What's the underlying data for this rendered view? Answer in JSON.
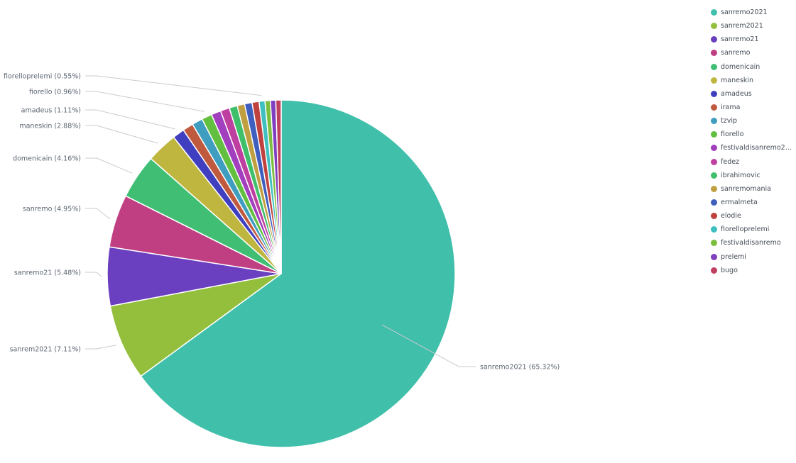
{
  "chart_data": {
    "type": "pie",
    "slices": [
      {
        "label": "sanremo2021",
        "value": 65.32,
        "color": "#40bfaa"
      },
      {
        "label": "sanrem2021",
        "value": 7.11,
        "color": "#93bf3c"
      },
      {
        "label": "sanremo21",
        "value": 5.48,
        "color": "#6a3fc0"
      },
      {
        "label": "sanremo",
        "value": 4.95,
        "color": "#c03f83"
      },
      {
        "label": "domenicain",
        "value": 4.16,
        "color": "#40bf74"
      },
      {
        "label": "maneskin",
        "value": 2.88,
        "color": "#bfb63f"
      },
      {
        "label": "amadeus",
        "value": 1.11,
        "color": "#403fbf"
      },
      {
        "label": "irama",
        "value": 1.0,
        "color": "#c05a3f"
      },
      {
        "label": "tzvip",
        "value": 1.0,
        "color": "#3f9dbf"
      },
      {
        "label": "fiorello",
        "value": 0.96,
        "color": "#62bf3f"
      },
      {
        "label": "festivaldisanremo2...",
        "value": 0.9,
        "color": "#a13fbf"
      },
      {
        "label": "fedez",
        "value": 0.85,
        "color": "#bf3fa1"
      },
      {
        "label": "ibrahimovic",
        "value": 0.75,
        "color": "#3fbf6a"
      },
      {
        "label": "sanremomania",
        "value": 0.7,
        "color": "#bf9f3f"
      },
      {
        "label": "ermalmeta",
        "value": 0.7,
        "color": "#3f5fbf"
      },
      {
        "label": "elodie",
        "value": 0.65,
        "color": "#bf423f"
      },
      {
        "label": "fiorelloprelemi",
        "value": 0.55,
        "color": "#3fbfbf"
      },
      {
        "label": "festivaldisanremo",
        "value": 0.5,
        "color": "#7cbf3f"
      },
      {
        "label": "prelemi",
        "value": 0.5,
        "color": "#803fbf"
      },
      {
        "label": "bugo",
        "value": 0.5,
        "color": "#bf3f5f"
      }
    ],
    "callouts": [
      {
        "label": "sanremo2021",
        "text": "sanremo2021 (65.32%)"
      },
      {
        "label": "sanrem2021",
        "text": "sanrem2021 (7.11%)"
      },
      {
        "label": "sanremo21",
        "text": "sanremo21 (5.48%)"
      },
      {
        "label": "sanremo",
        "text": "sanremo (4.95%)"
      },
      {
        "label": "domenicain",
        "text": "domenicain (4.16%)"
      },
      {
        "label": "maneskin",
        "text": "maneskin (2.88%)"
      },
      {
        "label": "amadeus",
        "text": "amadeus (1.11%)"
      },
      {
        "label": "fiorello",
        "text": "fiorello (0.96%)"
      },
      {
        "label": "fiorelloprelemi",
        "text": "fiorelloprelemi (0.55%)"
      }
    ],
    "legend_position": "top-right"
  },
  "legend": [
    {
      "label": "sanremo2021",
      "color": "#40bfaa"
    },
    {
      "label": "sanrem2021",
      "color": "#93bf3c"
    },
    {
      "label": "sanremo21",
      "color": "#6a3fc0"
    },
    {
      "label": "sanremo",
      "color": "#c03f83"
    },
    {
      "label": "domenicain",
      "color": "#40bf74"
    },
    {
      "label": "maneskin",
      "color": "#bfb63f"
    },
    {
      "label": "amadeus",
      "color": "#403fbf"
    },
    {
      "label": "irama",
      "color": "#c05a3f"
    },
    {
      "label": "tzvip",
      "color": "#3f9dbf"
    },
    {
      "label": "fiorello",
      "color": "#62bf3f"
    },
    {
      "label": "festivaldisanremo2...",
      "color": "#a13fbf"
    },
    {
      "label": "fedez",
      "color": "#bf3fa1"
    },
    {
      "label": "ibrahimovic",
      "color": "#3fbf6a"
    },
    {
      "label": "sanremomania",
      "color": "#bf9f3f"
    },
    {
      "label": "ermalmeta",
      "color": "#3f5fbf"
    },
    {
      "label": "elodie",
      "color": "#bf423f"
    },
    {
      "label": "fiorelloprelemi",
      "color": "#3fbfbf"
    },
    {
      "label": "festivaldisanremo",
      "color": "#7cbf3f"
    },
    {
      "label": "prelemi",
      "color": "#803fbf"
    },
    {
      "label": "bugo",
      "color": "#bf3f5f"
    }
  ]
}
